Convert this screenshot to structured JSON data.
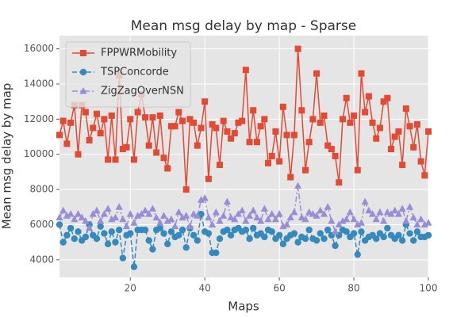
{
  "chart_data": {
    "type": "line",
    "title": "Mean msg delay by map - Sparse",
    "x_label": "Maps",
    "y_label": "Mean msg delay by map",
    "x": [
      1,
      2,
      3,
      4,
      5,
      6,
      7,
      8,
      9,
      10,
      11,
      12,
      13,
      14,
      15,
      16,
      17,
      18,
      19,
      20,
      21,
      22,
      23,
      24,
      25,
      26,
      27,
      28,
      29,
      30,
      31,
      32,
      33,
      34,
      35,
      36,
      37,
      38,
      39,
      40,
      41,
      42,
      43,
      44,
      45,
      46,
      47,
      48,
      49,
      50,
      51,
      52,
      53,
      54,
      55,
      56,
      57,
      58,
      59,
      60,
      61,
      62,
      63,
      64,
      65,
      66,
      67,
      68,
      69,
      70,
      71,
      72,
      73,
      74,
      75,
      76,
      77,
      78,
      79,
      80,
      81,
      82,
      83,
      84,
      85,
      86,
      87,
      88,
      89,
      90,
      91,
      92,
      93,
      94,
      95,
      96,
      97,
      98,
      99,
      100
    ],
    "series": [
      {
        "name": "FPPWRMobility",
        "color": "#E24A33",
        "dash": "none",
        "marker": "square",
        "values": [
          11100,
          11900,
          10600,
          11800,
          12800,
          10000,
          12800,
          12400,
          10800,
          11500,
          12300,
          11200,
          12000,
          9700,
          12200,
          9700,
          14500,
          10300,
          10400,
          12000,
          9700,
          12400,
          13400,
          12100,
          10500,
          12100,
          10100,
          12200,
          9800,
          9200,
          11600,
          11600,
          12400,
          11900,
          8000,
          12000,
          11800,
          10500,
          11500,
          13000,
          8600,
          11700,
          11500,
          9400,
          11900,
          11300,
          10900,
          11200,
          11800,
          11900,
          14800,
          10700,
          12500,
          10700,
          11600,
          12000,
          9500,
          9900,
          11300,
          9600,
          12700,
          11100,
          8700,
          11100,
          16000,
          12500,
          9100,
          10700,
          12000,
          14600,
          11800,
          12200,
          10500,
          10300,
          9900,
          8400,
          12000,
          13200,
          11800,
          12200,
          9100,
          14600,
          12400,
          13300,
          11800,
          10900,
          11500,
          13000,
          13200,
          10300,
          11000,
          11300,
          9400,
          12600,
          11600,
          10400,
          11700,
          9600,
          8800,
          11300
        ]
      },
      {
        "name": "TSPConcorde",
        "color": "#348ABD",
        "dash": "6,3",
        "marker": "circle",
        "values": [
          6000,
          5000,
          5400,
          5800,
          5200,
          5600,
          5100,
          5300,
          6000,
          5400,
          5200,
          5900,
          5500,
          4900,
          5600,
          5000,
          5700,
          4100,
          5400,
          5500,
          3600,
          5700,
          5700,
          5700,
          5100,
          4600,
          5700,
          5800,
          5500,
          4900,
          5600,
          5300,
          5400,
          5700,
          4700,
          5800,
          5400,
          5100,
          6600,
          5600,
          5500,
          4400,
          4400,
          5200,
          5600,
          5700,
          5400,
          5700,
          5800,
          5600,
          5700,
          5200,
          5800,
          5400,
          5500,
          5300,
          5700,
          5600,
          5200,
          5400,
          4900,
          5200,
          5400,
          5500,
          5000,
          5300,
          5200,
          5700,
          5200,
          5100,
          5500,
          5200,
          5700,
          5400,
          4800,
          5400,
          5700,
          5600,
          5300,
          5500,
          4300,
          5600,
          5100,
          5300,
          5400,
          5200,
          5500,
          5300,
          5800,
          5400,
          5200,
          5400,
          5100,
          6000,
          5500,
          5100,
          5600,
          5300,
          5300,
          5400
        ]
      },
      {
        "name": "ZigZagOverNSN",
        "color": "#988ED5",
        "dash": "7,3,2,3",
        "marker": "triangle",
        "values": [
          6400,
          6800,
          6500,
          6600,
          6300,
          6600,
          6400,
          6200,
          5800,
          6600,
          6800,
          6200,
          6600,
          6900,
          6300,
          6400,
          7000,
          6300,
          5900,
          6600,
          6100,
          6500,
          6600,
          6800,
          6600,
          6900,
          6400,
          6100,
          6500,
          6200,
          6300,
          5900,
          6700,
          6400,
          6500,
          5900,
          6600,
          6500,
          7400,
          7500,
          6400,
          6000,
          6700,
          6200,
          6500,
          7300,
          6400,
          6300,
          6600,
          6800,
          6200,
          6500,
          6800,
          6400,
          6200,
          6900,
          6300,
          6600,
          6300,
          6600,
          5900,
          6000,
          6400,
          6700,
          8200,
          6400,
          6300,
          6700,
          6600,
          6500,
          6800,
          6600,
          7000,
          6200,
          5600,
          6000,
          6200,
          6300,
          6700,
          6300,
          6000,
          6100,
          7300,
          6800,
          6600,
          6300,
          6700,
          6200,
          6700,
          6600,
          6800,
          6600,
          6900,
          6200,
          7000,
          6400,
          6000,
          6300,
          6000,
          6100
        ]
      }
    ],
    "xlim": [
      1,
      100
    ],
    "xticks": [
      20,
      40,
      60,
      80,
      100
    ],
    "ylim": [
      3000,
      16750
    ],
    "yticks": [
      4000,
      6000,
      8000,
      10000,
      12000,
      14000,
      16000
    ],
    "grid": true,
    "legend": "upper left"
  }
}
